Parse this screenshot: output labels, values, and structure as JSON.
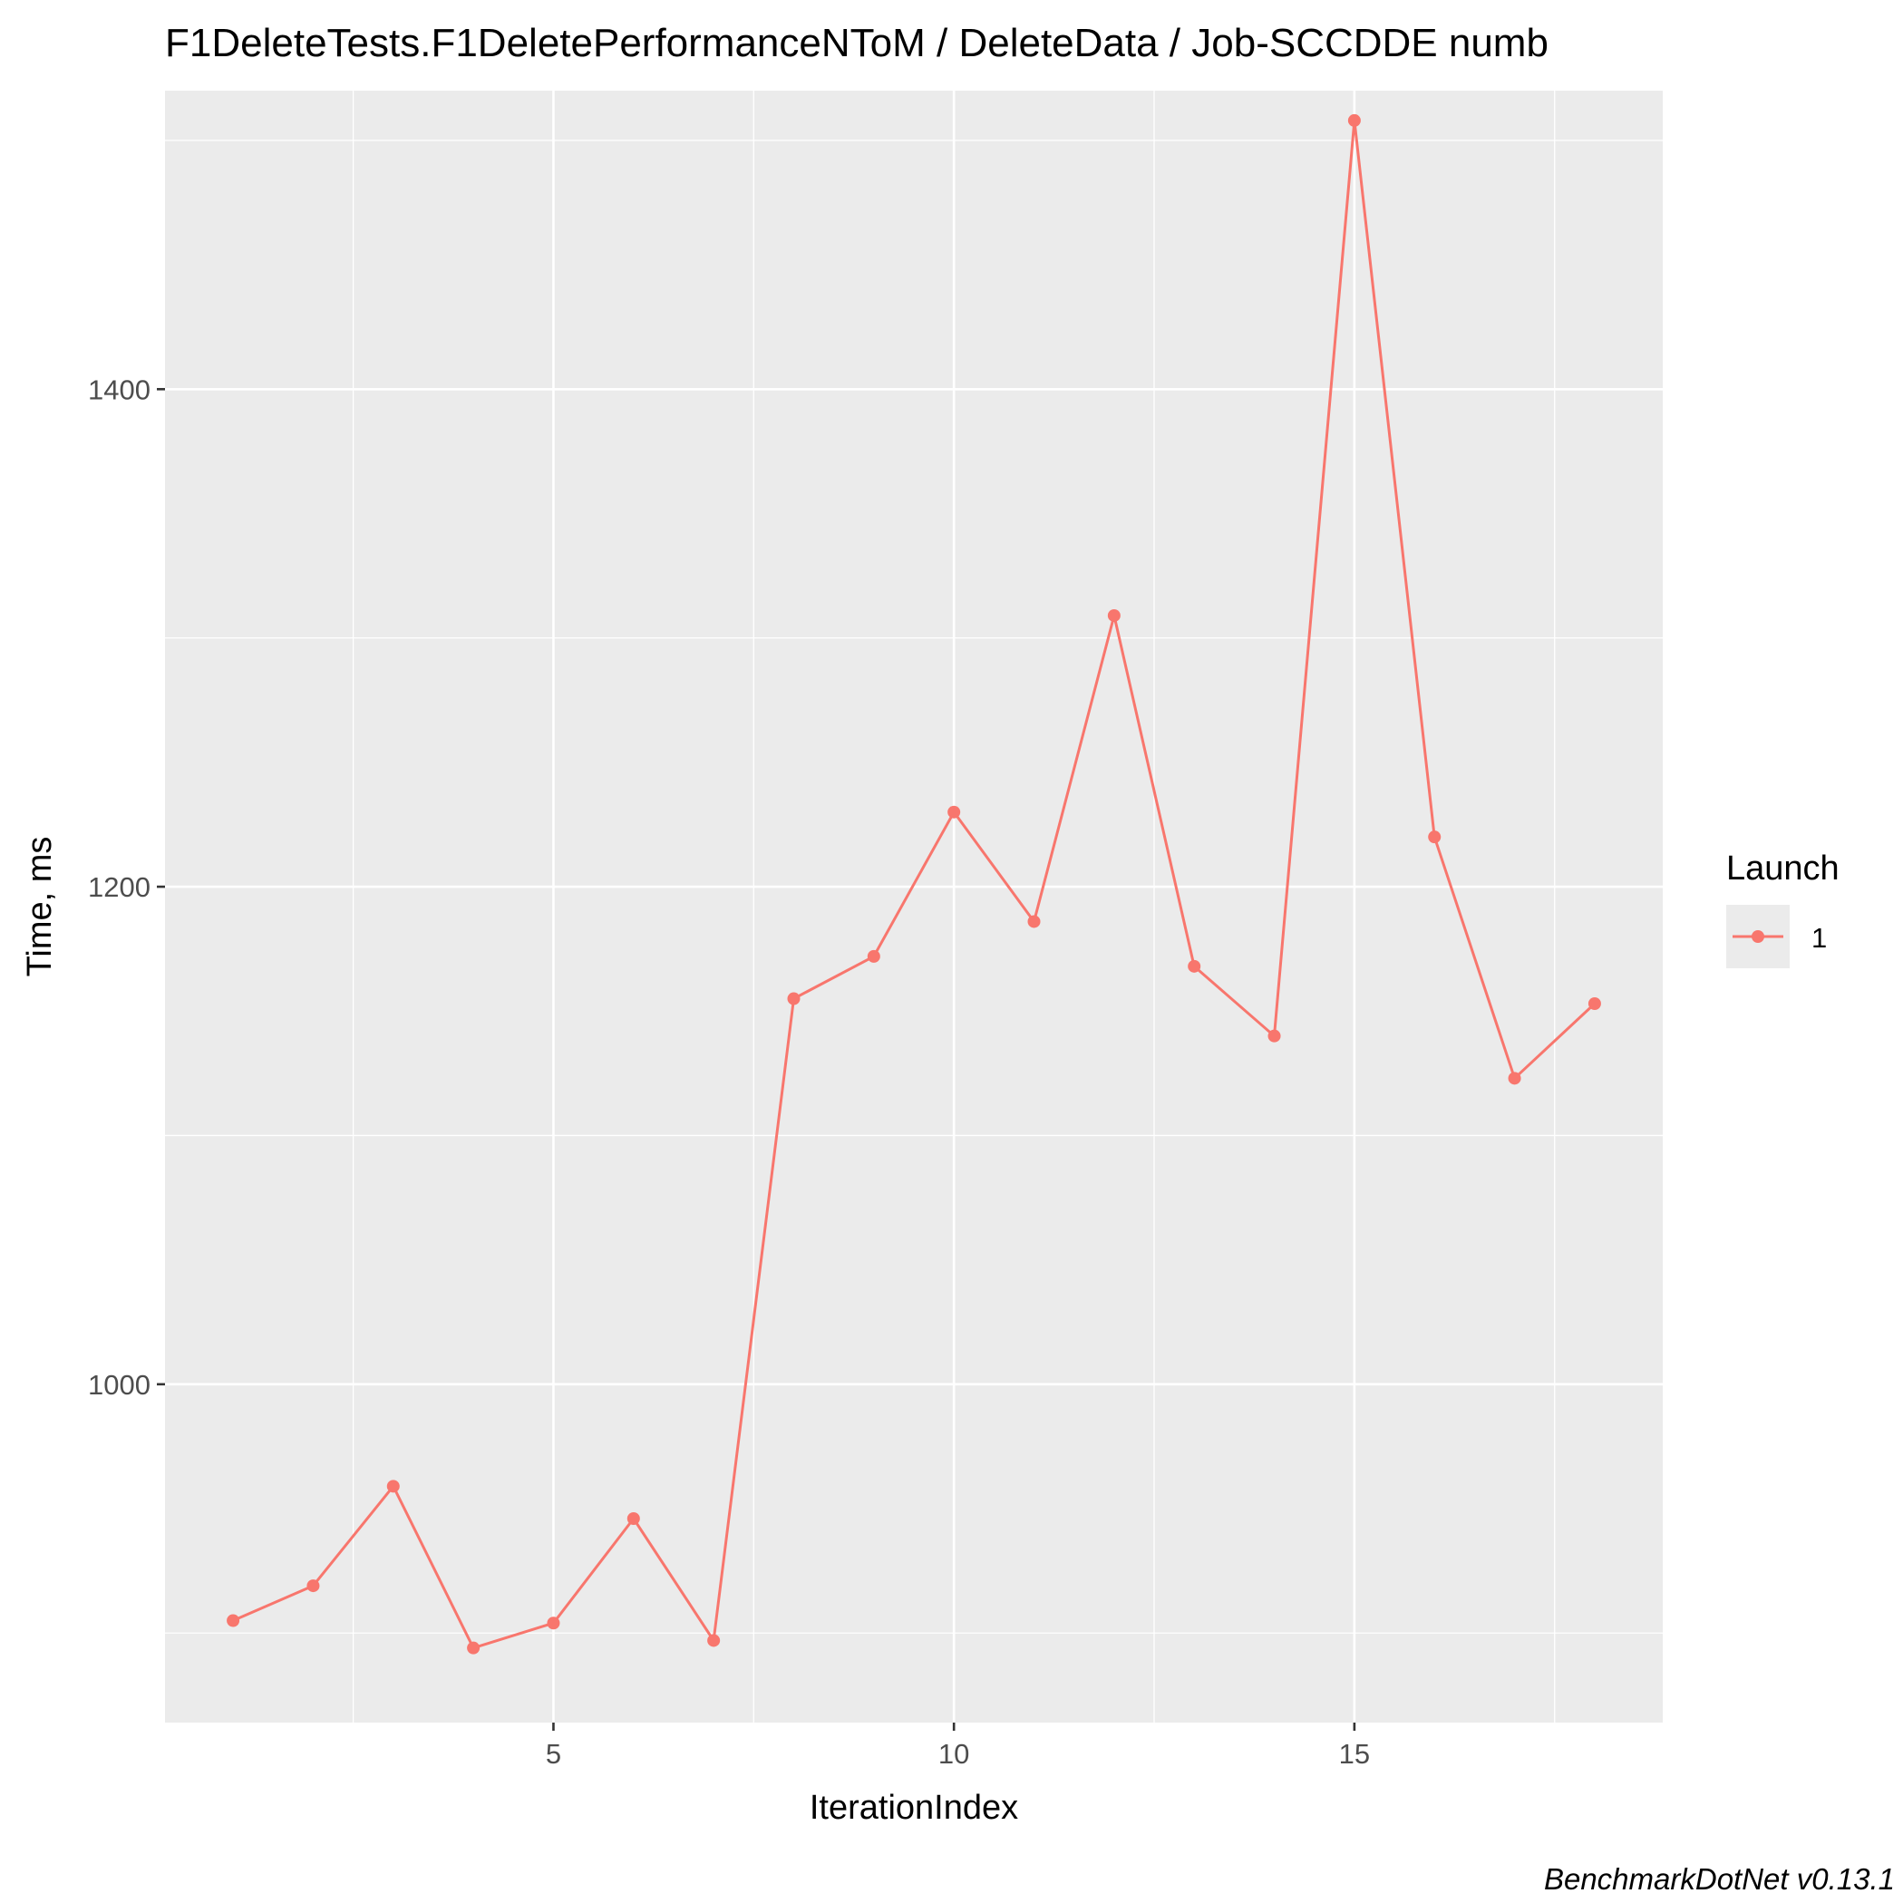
{
  "chart_data": {
    "type": "line",
    "title": "F1DeleteTests.F1DeletePerformanceNToM / DeleteData / Job-SCCDDE numb",
    "xlabel": "IterationIndex",
    "ylabel": "Time, ms",
    "xlim": [
      0.15,
      18.85
    ],
    "ylim": [
      864,
      1520
    ],
    "x_ticks": [
      5,
      10,
      15
    ],
    "y_ticks": [
      1000,
      1200,
      1400
    ],
    "x_minor_ticks": [
      2.5,
      7.5,
      12.5,
      17.5
    ],
    "y_minor_ticks": [
      900,
      1100,
      1300,
      1500
    ],
    "grid": true,
    "legend": {
      "title": "Launch",
      "position": "right"
    },
    "series": [
      {
        "name": "1",
        "color": "#F8766D",
        "x": [
          1,
          2,
          3,
          4,
          5,
          6,
          7,
          8,
          9,
          10,
          11,
          12,
          13,
          14,
          15,
          16,
          17,
          18
        ],
        "y": [
          905,
          919,
          959,
          894,
          904,
          946,
          897,
          1155,
          1172,
          1230,
          1186,
          1309,
          1168,
          1140,
          1508,
          1220,
          1123,
          1153
        ]
      }
    ],
    "caption": "BenchmarkDotNet v0.13.1"
  }
}
